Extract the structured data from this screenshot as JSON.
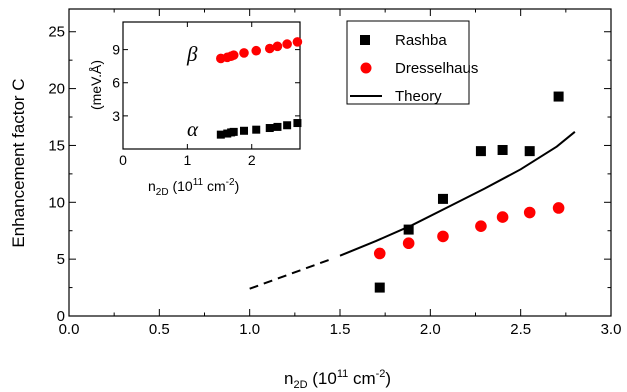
{
  "chart_data": [
    {
      "type": "scatter",
      "ylabel": "Enhancement factor C",
      "xlabel": {
        "base": "n",
        "sub": "2D",
        "open": " (10",
        "exp1": "11",
        "unit": " cm",
        "exp2": "-2",
        "close": ")"
      },
      "xlim": [
        0.0,
        3.0
      ],
      "ylim": [
        0,
        27
      ],
      "xticks": [
        0.0,
        0.5,
        1.0,
        1.5,
        2.0,
        2.5,
        3.0
      ],
      "xtick_labels": [
        "0.0",
        "0.5",
        "1.0",
        "1.5",
        "2.0",
        "2.5",
        "3.0"
      ],
      "yticks": [
        0,
        5,
        10,
        15,
        20,
        25
      ],
      "ytick_labels": [
        "0",
        "5",
        "10",
        "15",
        "20",
        "25"
      ],
      "series": [
        {
          "name": "Rashba",
          "marker": "square",
          "color": "#000000",
          "x": [
            1.72,
            1.88,
            2.07,
            2.28,
            2.4,
            2.55,
            2.71
          ],
          "y": [
            2.5,
            7.6,
            10.3,
            14.5,
            14.6,
            14.5,
            19.3
          ]
        },
        {
          "name": "Dresselhaus",
          "marker": "circle",
          "color": "#ff0000",
          "x": [
            1.72,
            1.88,
            2.07,
            2.28,
            2.4,
            2.55,
            2.71
          ],
          "y": [
            5.5,
            6.4,
            7.0,
            7.9,
            8.7,
            9.1,
            9.5
          ]
        },
        {
          "name": "Theory",
          "marker": "line",
          "color": "#000000",
          "x": [
            1.5,
            1.7,
            1.9,
            2.1,
            2.3,
            2.5,
            2.7,
            2.8
          ],
          "y": [
            5.3,
            6.6,
            8.0,
            9.6,
            11.2,
            12.9,
            14.9,
            16.2
          ]
        },
        {
          "name": "",
          "marker": "dashed-line",
          "color": "#000000",
          "x": [
            1.0,
            1.45
          ],
          "y": [
            2.4,
            5.0
          ]
        }
      ],
      "legend": "top-right"
    },
    {
      "type": "scatter",
      "ylabel": "(meV.Å)",
      "xlabel": {
        "base": "n",
        "sub": "2D",
        "open": " (10",
        "exp1": "11",
        "unit": " cm",
        "exp2": "-2",
        "close": ")"
      },
      "xlim": [
        0,
        2.75
      ],
      "ylim": [
        0,
        11.5
      ],
      "xticks": [
        0,
        1,
        2
      ],
      "xtick_labels": [
        "0",
        "1",
        "2"
      ],
      "yticks": [
        3,
        6,
        9
      ],
      "ytick_labels": [
        "3",
        "6",
        "9"
      ],
      "series": [
        {
          "name": "β",
          "marker": "circle",
          "color": "#ff0000",
          "x": [
            1.52,
            1.62,
            1.68,
            1.72,
            1.88,
            2.07,
            2.28,
            2.4,
            2.55,
            2.71
          ],
          "y": [
            8.2,
            8.3,
            8.4,
            8.5,
            8.7,
            8.9,
            9.1,
            9.3,
            9.5,
            9.7
          ]
        },
        {
          "name": "α",
          "marker": "square",
          "color": "#000000",
          "x": [
            1.52,
            1.62,
            1.68,
            1.72,
            1.88,
            2.07,
            2.28,
            2.4,
            2.55,
            2.71
          ],
          "y": [
            1.3,
            1.4,
            1.5,
            1.55,
            1.65,
            1.75,
            1.9,
            2.0,
            2.15,
            2.35
          ]
        }
      ],
      "legend": "none"
    }
  ]
}
